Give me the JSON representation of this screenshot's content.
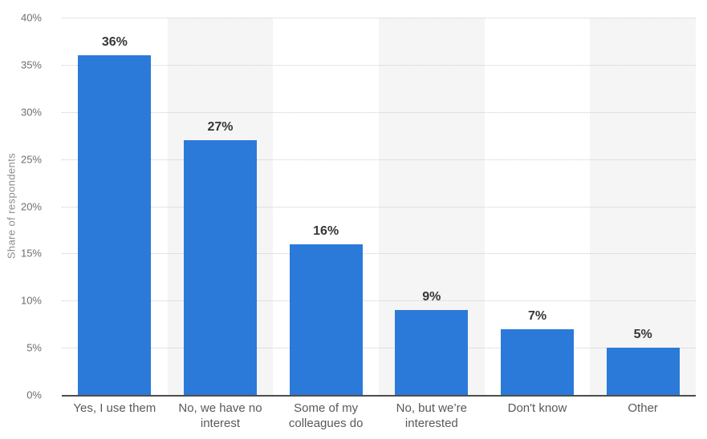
{
  "chart_data": {
    "type": "bar",
    "title": "",
    "xlabel": "",
    "ylabel": "Share of respondents",
    "ylim": [
      0,
      40
    ],
    "y_tick_step": 5,
    "y_ticks": [
      {
        "value": 0,
        "label": "0%"
      },
      {
        "value": 5,
        "label": "5%"
      },
      {
        "value": 10,
        "label": "10%"
      },
      {
        "value": 15,
        "label": "15%"
      },
      {
        "value": 20,
        "label": "20%"
      },
      {
        "value": 25,
        "label": "25%"
      },
      {
        "value": 30,
        "label": "30%"
      },
      {
        "value": 35,
        "label": "35%"
      },
      {
        "value": 40,
        "label": "40%"
      }
    ],
    "categories": [
      "Yes, I use them",
      "No, we have no interest",
      "Some of my colleagues do",
      "No, but we’re interested",
      "Don't know",
      "Other"
    ],
    "category_label_lines": [
      [
        "Yes, I use them"
      ],
      [
        "No, we have no",
        "interest"
      ],
      [
        "Some of my",
        "colleagues do"
      ],
      [
        "No, but we’re",
        "interested"
      ],
      [
        "Don't know"
      ],
      [
        "Other"
      ]
    ],
    "values": [
      36,
      27,
      16,
      9,
      7,
      5
    ],
    "value_labels": [
      "36%",
      "27%",
      "16%",
      "9%",
      "7%",
      "5%"
    ],
    "grid": "horizontal-dotted",
    "legend": "none",
    "colors": {
      "bar": "#2b7ad9",
      "band": "#f5f5f5",
      "gridline": "#cccccc",
      "axis_line": "#4d4d4d",
      "value_label": "#373737",
      "category_label": "#595959",
      "tick_label": "#6e6e6e",
      "axis_title": "#8c8c8c",
      "background": "#ffffff"
    }
  }
}
